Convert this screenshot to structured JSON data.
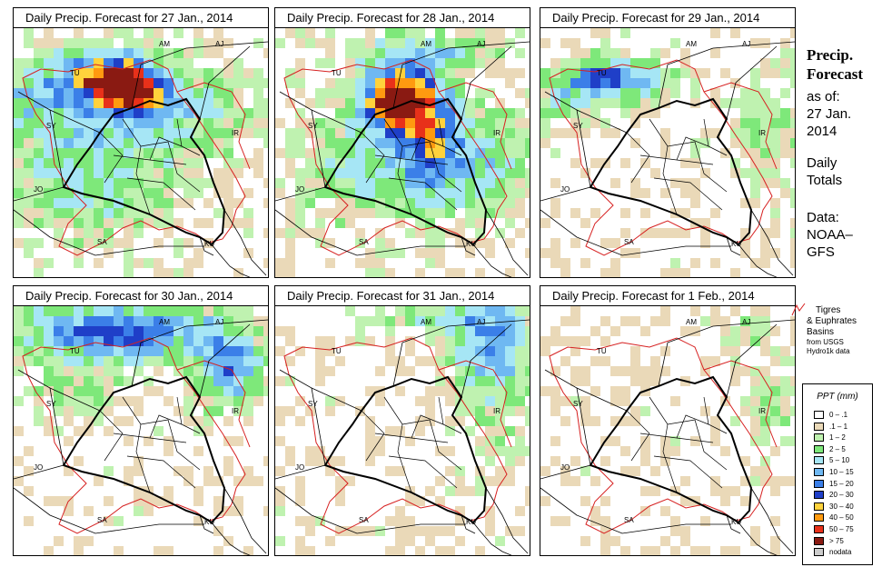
{
  "panels": [
    {
      "title": "Daily Precip. Forecast for  27 Jan., 2014",
      "day": 0
    },
    {
      "title": "Daily Precip. Forecast for  28 Jan., 2014",
      "day": 1
    },
    {
      "title": "Daily Precip. Forecast for  29 Jan., 2014",
      "day": 2
    },
    {
      "title": "Daily Precip. Forecast for  30 Jan., 2014",
      "day": 3
    },
    {
      "title": "Daily Precip. Forecast for  31 Jan., 2014",
      "day": 4
    },
    {
      "title": "Daily Precip. Forecast for  1 Feb., 2014",
      "day": 5
    }
  ],
  "map_labels": [
    "AM",
    "AJ",
    "TU",
    "SY",
    "IR",
    "JO",
    "SA",
    "KU"
  ],
  "sidebar": {
    "heading_line1": "Precip.",
    "heading_line2": "Forecast",
    "asof_line1": "as of:",
    "asof_line2": "27 Jan.",
    "asof_line3": "2014",
    "totals_line1": "Daily",
    "totals_line2": "Totals",
    "data_line1": "Data:",
    "data_line2": "NOAA–",
    "data_line3": "GFS"
  },
  "basin_legend": {
    "line1": "Tigres",
    "line2": "& Euphrates",
    "line3": "Basins",
    "line4": "from USGS",
    "line5": "Hydro1k data",
    "color": "#d62020"
  },
  "ppt_legend": {
    "title": "PPT (mm)",
    "classes": [
      {
        "label": "0 – .1",
        "color": "#ffffff"
      },
      {
        "label": ".1 – 1",
        "color": "#ead9b8"
      },
      {
        "label": "1 – 2",
        "color": "#bff2b0"
      },
      {
        "label": "2 – 5",
        "color": "#7ee87a"
      },
      {
        "label": "5 – 10",
        "color": "#a6e6f5"
      },
      {
        "label": "10 – 15",
        "color": "#6fb8f2"
      },
      {
        "label": "15 – 20",
        "color": "#3b7fe8"
      },
      {
        "label": "20 – 30",
        "color": "#1f3fc8"
      },
      {
        "label": "30 – 40",
        "color": "#ffd23c"
      },
      {
        "label": "40 – 50",
        "color": "#ff9a10"
      },
      {
        "label": "50 – 75",
        "color": "#e8311a"
      },
      {
        "label": "> 75",
        "color": "#8a1a12"
      },
      {
        "label": "nodata",
        "color": "#cccccc"
      }
    ]
  }
}
